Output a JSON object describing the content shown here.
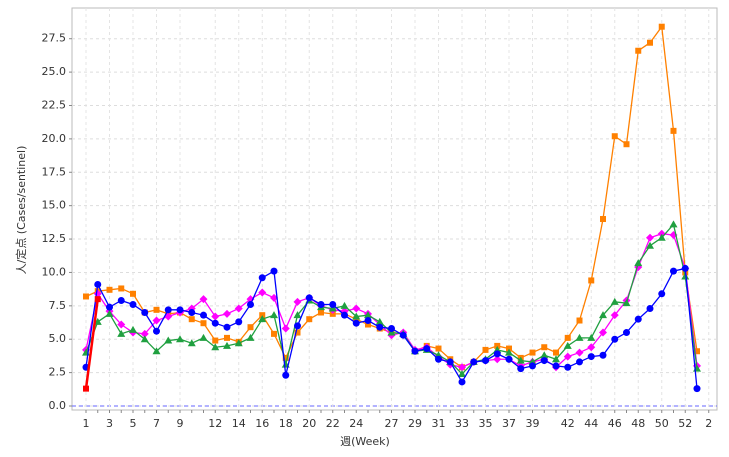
{
  "chart_data": {
    "type": "line",
    "x_label": "週(Week)",
    "y_label": "人/定点 (Cases/sentinel)",
    "categories": [
      "1",
      null,
      "3",
      null,
      "5",
      null,
      "7",
      null,
      "9",
      null,
      null,
      "12",
      null,
      "14",
      null,
      "16",
      null,
      "18",
      null,
      "20",
      null,
      "22",
      null,
      "24",
      null,
      null,
      "27",
      null,
      "29",
      null,
      "31",
      null,
      "33",
      null,
      "35",
      null,
      "37",
      null,
      "39",
      null,
      null,
      "42",
      null,
      "44",
      null,
      "46",
      null,
      "48",
      null,
      "50",
      null,
      "52",
      null,
      "2"
    ],
    "ylim": [
      -0.3,
      29.8
    ],
    "yticks": [
      {
        "value": 0,
        "label": "0.0"
      },
      {
        "value": 2.5,
        "label": "2.5"
      },
      {
        "value": 5,
        "label": "5.0"
      },
      {
        "value": 7.5,
        "label": "7.5"
      },
      {
        "value": 10,
        "label": "10.0"
      },
      {
        "value": 12.5,
        "label": "12.5"
      },
      {
        "value": 15,
        "label": "15.0"
      },
      {
        "value": 17.5,
        "label": "17.5"
      },
      {
        "value": 20,
        "label": "20.0"
      },
      {
        "value": 22.5,
        "label": "22.5"
      },
      {
        "value": 25,
        "label": "25.0"
      },
      {
        "value": 27.5,
        "label": "27.5"
      }
    ],
    "grid": true,
    "series": [
      {
        "color": "#ff8000",
        "marker": "square",
        "values": [
          8.2,
          8.6,
          8.7,
          8.8,
          8.4,
          7.0,
          7.2,
          6.9,
          7.0,
          6.5,
          6.2,
          4.9,
          5.1,
          4.8,
          5.9,
          6.8,
          5.4,
          3.6,
          5.5,
          6.5,
          7.0,
          6.9,
          6.9,
          6.5,
          6.1,
          5.8,
          5.5,
          5.4,
          4.1,
          4.5,
          4.3,
          3.5,
          2.9,
          3.3,
          4.2,
          4.5,
          4.3,
          3.6,
          4.0,
          4.4,
          4.0,
          5.1,
          6.4,
          9.4,
          14.0,
          20.2,
          19.6,
          26.6,
          27.2,
          28.4,
          20.6,
          10.0,
          4.1,
          null
        ]
      },
      {
        "color": "#ff00ff",
        "marker": "diamond",
        "values": [
          4.2,
          8.4,
          7.1,
          6.1,
          5.5,
          5.4,
          6.4,
          6.7,
          7.0,
          7.3,
          8.0,
          6.7,
          6.9,
          7.3,
          8.0,
          8.5,
          8.1,
          5.8,
          7.8,
          8.1,
          7.5,
          7.2,
          7.1,
          7.3,
          6.9,
          6.1,
          5.3,
          5.5,
          4.2,
          4.4,
          3.7,
          3.1,
          2.9,
          3.3,
          3.4,
          3.5,
          3.5,
          3.0,
          3.3,
          3.5,
          2.9,
          3.7,
          4.0,
          4.4,
          5.5,
          6.8,
          7.9,
          10.4,
          12.6,
          12.9,
          12.8,
          10.3,
          3.0,
          null
        ]
      },
      {
        "color": "#20a040",
        "marker": "triangle",
        "values": [
          4.0,
          6.3,
          6.9,
          5.4,
          5.7,
          5.0,
          4.1,
          4.9,
          5.0,
          4.7,
          5.1,
          4.4,
          4.5,
          4.7,
          5.1,
          6.5,
          6.8,
          3.1,
          6.8,
          7.9,
          7.4,
          7.3,
          7.5,
          6.7,
          6.8,
          6.3,
          5.5,
          5.4,
          4.1,
          4.2,
          3.8,
          3.3,
          2.4,
          3.3,
          3.5,
          4.2,
          4.0,
          3.4,
          3.3,
          3.8,
          3.5,
          4.5,
          5.1,
          5.1,
          6.8,
          7.8,
          7.7,
          10.7,
          12.0,
          12.6,
          13.6,
          9.7,
          2.8,
          null
        ]
      },
      {
        "color": "#0000ff",
        "marker": "circle",
        "values": [
          2.9,
          9.1,
          7.4,
          7.9,
          7.6,
          7.0,
          5.6,
          7.2,
          7.2,
          7.0,
          6.8,
          6.2,
          5.9,
          6.3,
          7.6,
          9.6,
          10.1,
          2.3,
          6.0,
          8.1,
          7.6,
          7.6,
          6.8,
          6.2,
          6.4,
          5.9,
          5.8,
          5.3,
          4.1,
          4.3,
          3.5,
          3.3,
          1.8,
          3.3,
          3.4,
          3.9,
          3.5,
          2.8,
          3.0,
          3.4,
          3.0,
          2.9,
          3.3,
          3.7,
          3.8,
          5.0,
          5.5,
          6.5,
          7.3,
          8.4,
          10.1,
          10.3,
          1.3,
          null
        ]
      },
      {
        "color": "#ff0000",
        "marker": "square",
        "values": [
          1.3,
          8.0,
          null,
          null,
          null,
          null,
          null,
          null,
          null,
          null,
          null,
          null,
          null,
          null,
          null,
          null,
          null,
          null,
          null,
          null,
          null,
          null,
          null,
          null,
          null,
          null,
          null,
          null,
          null,
          null,
          null,
          null,
          null,
          null,
          null,
          null,
          null,
          null,
          null,
          null,
          null,
          null,
          null,
          null,
          null,
          null,
          null,
          null,
          null,
          null,
          null,
          null,
          null,
          null
        ]
      }
    ]
  }
}
